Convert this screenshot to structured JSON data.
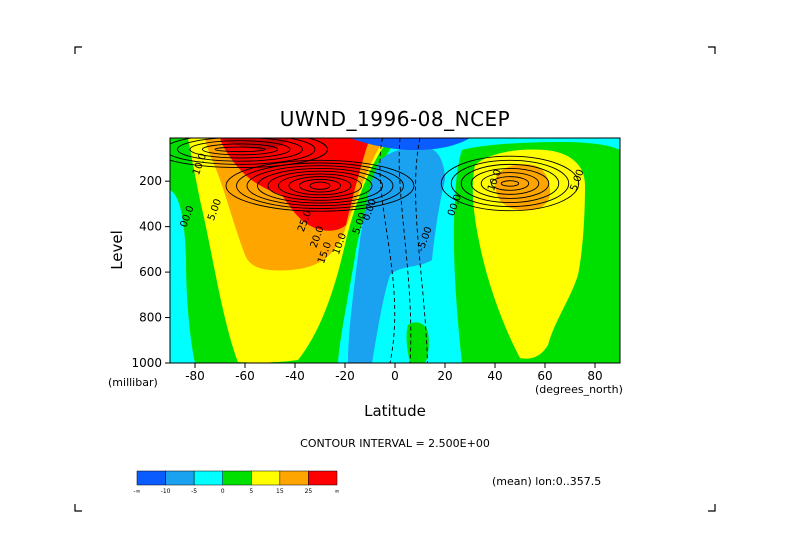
{
  "chart_data": {
    "type": "heatmap",
    "subtype": "filled contour",
    "title": "UWND_1996-08_NCEP",
    "xlabel": "Latitude",
    "ylabel": "Level",
    "x_unit": "(degrees_north)",
    "y_unit": "(millibar)",
    "xlim": [
      -90,
      90
    ],
    "ylim": [
      1000,
      10
    ],
    "y_inverted": true,
    "x_ticks": [
      -80,
      -60,
      -40,
      -20,
      0,
      20,
      40,
      60,
      80
    ],
    "y_ticks": [
      200,
      400,
      600,
      800,
      1000
    ],
    "contour_interval_text": "CONTOUR INTERVAL = 2.500E+00",
    "subtitle": "(mean) lon:0..357.5",
    "colorbar": {
      "bins": [
        {
          "label": "-∞",
          "color": "#0a5cff"
        },
        {
          "label": "-10",
          "color": "#1aa1f0"
        },
        {
          "label": "-5",
          "color": "#00ffff"
        },
        {
          "label": "0",
          "color": "#00e000"
        },
        {
          "label": "5",
          "color": "#ffff00"
        },
        {
          "label": "15",
          "color": "#ffa500"
        },
        {
          "label": "25",
          "color": "#ff0000"
        }
      ],
      "end_label": "∞"
    },
    "contour_labels": [
      {
        "text": "10.0",
        "lat": -77,
        "level": 130
      },
      {
        "text": "5.00",
        "lat": -71,
        "level": 330
      },
      {
        "text": "00.0",
        "lat": -82,
        "level": 360
      },
      {
        "text": "25.0",
        "lat": -35,
        "level": 380
      },
      {
        "text": "20.0",
        "lat": -30,
        "level": 450
      },
      {
        "text": "15.0",
        "lat": -27,
        "level": 520
      },
      {
        "text": "10.0",
        "lat": -21,
        "level": 480
      },
      {
        "text": "5.00",
        "lat": -13,
        "level": 390
      },
      {
        "text": "0.00",
        "lat": -9,
        "level": 330
      },
      {
        "text": "-5.00",
        "lat": 13,
        "level": 460
      },
      {
        "text": "00.0",
        "lat": 25,
        "level": 310
      },
      {
        "text": "10.0",
        "lat": 41,
        "level": 200
      },
      {
        "text": "5.00",
        "lat": 74,
        "level": 200
      }
    ],
    "features": [
      {
        "kind": "jet",
        "lat": -30,
        "level": 220,
        "peak": 30
      },
      {
        "kind": "jet",
        "lat": 46,
        "level": 220,
        "peak": 20
      },
      {
        "kind": "easterly",
        "lat": 0,
        "level": 100,
        "peak": -15
      }
    ]
  }
}
